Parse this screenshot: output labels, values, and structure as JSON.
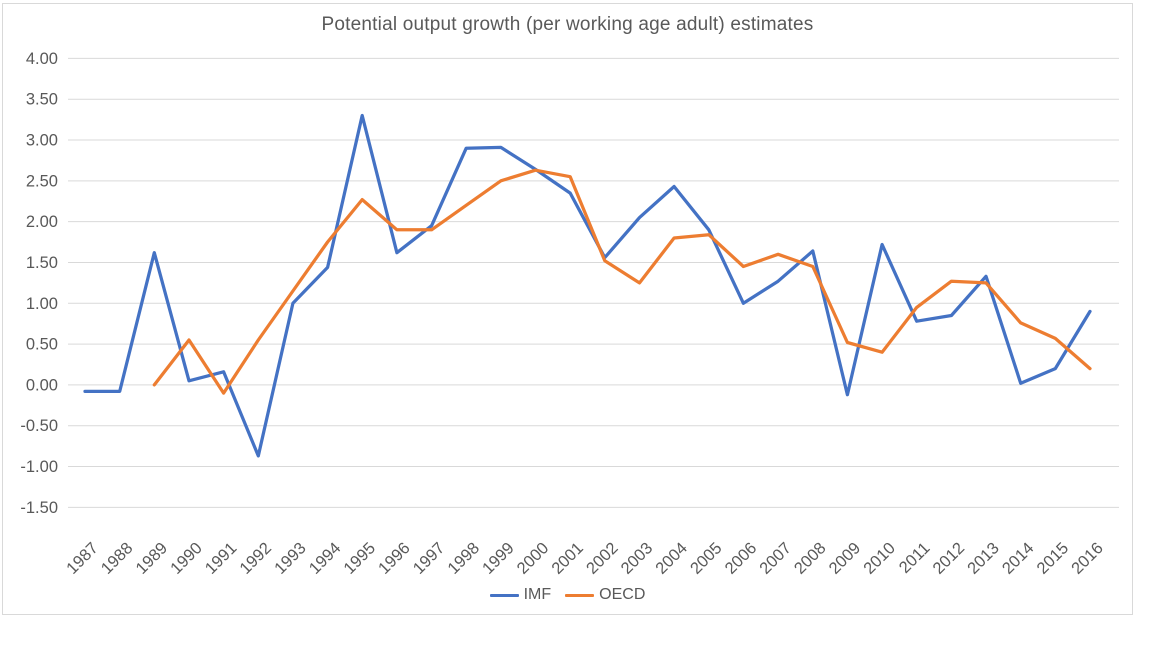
{
  "chart_data": {
    "type": "line",
    "title": "Potential output growth (per working age adult) estimates",
    "x": [
      1987,
      1988,
      1989,
      1990,
      1991,
      1992,
      1993,
      1994,
      1995,
      1996,
      1997,
      1998,
      1999,
      2000,
      2001,
      2002,
      2003,
      2004,
      2005,
      2006,
      2007,
      2008,
      2009,
      2010,
      2011,
      2012,
      2013,
      2014,
      2015,
      2016
    ],
    "series": [
      {
        "name": "IMF",
        "color": "#4472C4",
        "values": [
          -0.08,
          -0.08,
          1.62,
          0.05,
          0.16,
          -0.87,
          1.0,
          1.44,
          3.3,
          1.62,
          1.95,
          2.9,
          2.91,
          2.64,
          2.35,
          1.56,
          2.05,
          2.43,
          1.9,
          1.0,
          1.27,
          1.64,
          -0.12,
          1.72,
          0.78,
          0.85,
          1.33,
          0.02,
          0.2,
          0.9
        ]
      },
      {
        "name": "OECD",
        "color": "#ED7D31",
        "values": [
          null,
          null,
          0.0,
          0.55,
          -0.1,
          0.55,
          1.15,
          1.75,
          2.27,
          1.9,
          1.9,
          2.2,
          2.5,
          2.63,
          2.55,
          1.52,
          1.25,
          1.8,
          1.84,
          1.45,
          1.6,
          1.45,
          0.52,
          0.4,
          0.95,
          1.27,
          1.25,
          0.76,
          0.57,
          0.2
        ]
      }
    ],
    "ylim": [
      -1.5,
      4.0
    ],
    "ytick_step": 0.5,
    "ytick_labels": [
      "4.00",
      "3.50",
      "3.00",
      "2.50",
      "2.00",
      "1.50",
      "1.00",
      "0.50",
      "0.00",
      "-0.50",
      "-1.00",
      "-1.50"
    ],
    "grid": "horizontal",
    "legend_position": "bottom",
    "colors": {
      "gridline": "#D9D9D9",
      "chart_border": "#D9D9D9",
      "axis_text": "#595959",
      "title_text": "#595959"
    }
  }
}
